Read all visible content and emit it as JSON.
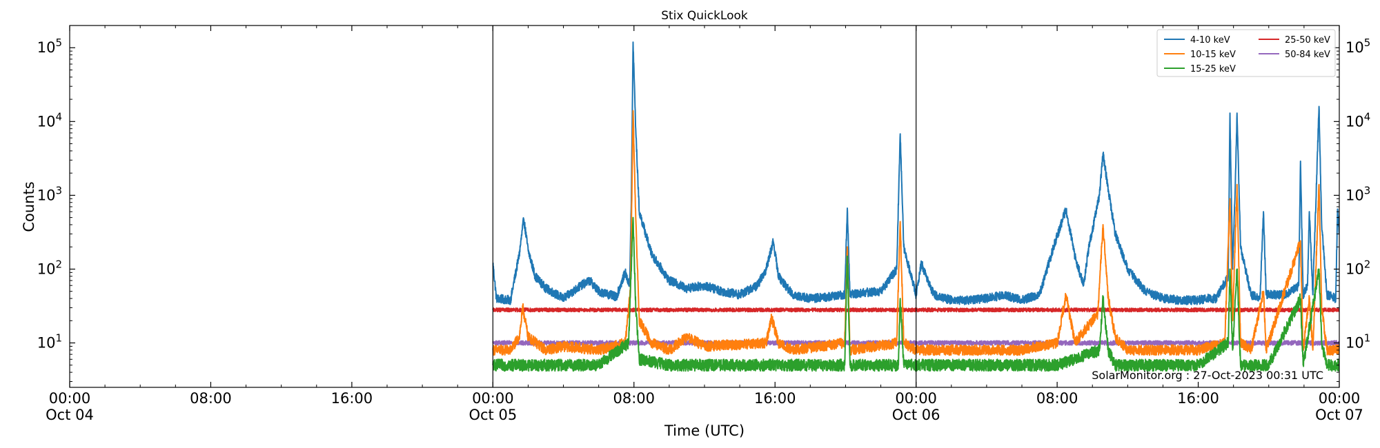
{
  "chart_data": {
    "type": "line",
    "title": "Stix QuickLook",
    "xlabel": "Time (UTC)",
    "ylabel": "Counts",
    "yscale": "log",
    "ylim": [
      2.5,
      200000
    ],
    "xlim_hours": [
      0,
      72
    ],
    "x_ticks": [
      {
        "hour": 0,
        "time": "00:00",
        "date": "Oct 04"
      },
      {
        "hour": 8,
        "time": "08:00",
        "date": ""
      },
      {
        "hour": 16,
        "time": "16:00",
        "date": ""
      },
      {
        "hour": 24,
        "time": "00:00",
        "date": "Oct 05"
      },
      {
        "hour": 32,
        "time": "08:00",
        "date": ""
      },
      {
        "hour": 40,
        "time": "16:00",
        "date": ""
      },
      {
        "hour": 48,
        "time": "00:00",
        "date": "Oct 06"
      },
      {
        "hour": 56,
        "time": "08:00",
        "date": ""
      },
      {
        "hour": 64,
        "time": "16:00",
        "date": ""
      },
      {
        "hour": 72,
        "time": "00:00",
        "date": "Oct 07"
      }
    ],
    "y_ticks": [
      {
        "value": 10,
        "base": "10",
        "exp": "1"
      },
      {
        "value": 100,
        "base": "10",
        "exp": "2"
      },
      {
        "value": 1000,
        "base": "10",
        "exp": "3"
      },
      {
        "value": 10000,
        "base": "10",
        "exp": "4"
      },
      {
        "value": 100000,
        "base": "10",
        "exp": "5"
      }
    ],
    "day_boundaries_hours": [
      24,
      48
    ],
    "data_start_hour": 24,
    "legend_position": "top-right",
    "grid": false,
    "series": [
      {
        "name": "4-10 keV",
        "color": "#1f77b4",
        "baseline": 38,
        "points": [
          [
            24.0,
            120
          ],
          [
            24.2,
            40
          ],
          [
            25.0,
            38
          ],
          [
            25.5,
            160
          ],
          [
            25.75,
            480
          ],
          [
            26.0,
            180
          ],
          [
            26.4,
            80
          ],
          [
            27.0,
            55
          ],
          [
            28.0,
            40
          ],
          [
            29.0,
            60
          ],
          [
            29.5,
            70
          ],
          [
            30.0,
            50
          ],
          [
            31.0,
            42
          ],
          [
            31.5,
            90
          ],
          [
            31.75,
            60
          ],
          [
            31.85,
            800
          ],
          [
            31.95,
            119000
          ],
          [
            32.1,
            8000
          ],
          [
            32.3,
            600
          ],
          [
            33.0,
            160
          ],
          [
            34.0,
            70
          ],
          [
            35.0,
            55
          ],
          [
            36.0,
            60
          ],
          [
            37.0,
            50
          ],
          [
            38.0,
            45
          ],
          [
            39.0,
            60
          ],
          [
            39.5,
            100
          ],
          [
            39.9,
            240
          ],
          [
            40.2,
            80
          ],
          [
            41.0,
            45
          ],
          [
            42.0,
            40
          ],
          [
            43.0,
            42
          ],
          [
            43.95,
            45
          ],
          [
            44.1,
            670
          ],
          [
            44.25,
            45
          ],
          [
            45.0,
            48
          ],
          [
            46.0,
            50
          ],
          [
            46.9,
            100
          ],
          [
            47.1,
            6800
          ],
          [
            47.3,
            200
          ],
          [
            48.0,
            45
          ],
          [
            48.3,
            120
          ],
          [
            49.0,
            45
          ],
          [
            50.0,
            38
          ],
          [
            51.0,
            38
          ],
          [
            52.0,
            40
          ],
          [
            53.0,
            45
          ],
          [
            54.0,
            38
          ],
          [
            55.0,
            45
          ],
          [
            55.8,
            200
          ],
          [
            56.5,
            650
          ],
          [
            57.0,
            150
          ],
          [
            57.5,
            60
          ],
          [
            57.8,
            200
          ],
          [
            58.4,
            1000
          ],
          [
            58.6,
            3700
          ],
          [
            58.9,
            1200
          ],
          [
            59.3,
            300
          ],
          [
            60.0,
            100
          ],
          [
            61.0,
            50
          ],
          [
            62.0,
            40
          ],
          [
            63.0,
            38
          ],
          [
            64.0,
            38
          ],
          [
            64.6,
            40
          ],
          [
            65.0,
            40
          ],
          [
            65.7,
            80
          ],
          [
            65.8,
            13000
          ],
          [
            65.95,
            100
          ],
          [
            66.1,
            1300
          ],
          [
            66.2,
            13000
          ],
          [
            66.4,
            200
          ],
          [
            67.0,
            45
          ],
          [
            67.5,
            40
          ],
          [
            67.7,
            600
          ],
          [
            67.85,
            45
          ],
          [
            68.5,
            45
          ],
          [
            69.0,
            45
          ],
          [
            69.7,
            60
          ],
          [
            69.8,
            2900
          ],
          [
            69.95,
            45
          ],
          [
            70.2,
            60
          ],
          [
            70.3,
            600
          ],
          [
            70.5,
            45
          ],
          [
            70.85,
            16000
          ],
          [
            71.0,
            400
          ],
          [
            71.3,
            45
          ],
          [
            71.8,
            40
          ],
          [
            71.9,
            650
          ],
          [
            72.0,
            300
          ]
        ]
      },
      {
        "name": "10-15 keV",
        "color": "#ff7f0e",
        "baseline": 8,
        "points": [
          [
            24.0,
            8
          ],
          [
            25.0,
            8
          ],
          [
            25.5,
            12
          ],
          [
            25.7,
            30
          ],
          [
            26.0,
            12
          ],
          [
            27.0,
            8
          ],
          [
            28.0,
            9
          ],
          [
            30.0,
            8
          ],
          [
            31.5,
            10
          ],
          [
            31.8,
            50
          ],
          [
            31.95,
            14000
          ],
          [
            32.1,
            500
          ],
          [
            32.3,
            20
          ],
          [
            33.0,
            10
          ],
          [
            34.0,
            8
          ],
          [
            35.0,
            12
          ],
          [
            36.0,
            9
          ],
          [
            39.5,
            10
          ],
          [
            39.8,
            22
          ],
          [
            40.2,
            10
          ],
          [
            41.0,
            8
          ],
          [
            43.95,
            10
          ],
          [
            44.1,
            200
          ],
          [
            44.25,
            8
          ],
          [
            46.9,
            10
          ],
          [
            47.1,
            440
          ],
          [
            47.3,
            10
          ],
          [
            48.0,
            8
          ],
          [
            50.0,
            8
          ],
          [
            52.0,
            8
          ],
          [
            54.0,
            8
          ],
          [
            56.0,
            10
          ],
          [
            56.5,
            45
          ],
          [
            57.0,
            10
          ],
          [
            58.3,
            25
          ],
          [
            58.6,
            400
          ],
          [
            58.9,
            40
          ],
          [
            59.3,
            12
          ],
          [
            60.0,
            8
          ],
          [
            62.0,
            8
          ],
          [
            64.0,
            8
          ],
          [
            65.5,
            10
          ],
          [
            65.8,
            900
          ],
          [
            65.95,
            20
          ],
          [
            66.2,
            1400
          ],
          [
            66.4,
            10
          ],
          [
            67.0,
            8
          ],
          [
            67.7,
            50
          ],
          [
            67.85,
            8
          ],
          [
            69.8,
            240
          ],
          [
            69.95,
            8
          ],
          [
            70.3,
            40
          ],
          [
            70.5,
            8
          ],
          [
            70.85,
            1400
          ],
          [
            71.0,
            30
          ],
          [
            71.3,
            8
          ],
          [
            72.0,
            8
          ]
        ]
      },
      {
        "name": "15-25 keV",
        "color": "#2ca02c",
        "baseline": 5,
        "points": [
          [
            24.0,
            5
          ],
          [
            26.0,
            5
          ],
          [
            28.0,
            5
          ],
          [
            30.0,
            5
          ],
          [
            31.7,
            10
          ],
          [
            31.95,
            500
          ],
          [
            32.1,
            30
          ],
          [
            32.3,
            6
          ],
          [
            34.0,
            5
          ],
          [
            36.0,
            5
          ],
          [
            38.0,
            5
          ],
          [
            40.0,
            5
          ],
          [
            43.95,
            5
          ],
          [
            44.1,
            150
          ],
          [
            44.25,
            5
          ],
          [
            47.0,
            5
          ],
          [
            47.1,
            40
          ],
          [
            47.3,
            5
          ],
          [
            50.0,
            5
          ],
          [
            52.0,
            5
          ],
          [
            54.0,
            5
          ],
          [
            56.0,
            5
          ],
          [
            58.4,
            8
          ],
          [
            58.6,
            40
          ],
          [
            58.9,
            8
          ],
          [
            59.3,
            5
          ],
          [
            62.0,
            5
          ],
          [
            64.0,
            5
          ],
          [
            65.7,
            10
          ],
          [
            65.8,
            100
          ],
          [
            65.95,
            8
          ],
          [
            66.2,
            100
          ],
          [
            66.4,
            5
          ],
          [
            68.0,
            5
          ],
          [
            69.8,
            40
          ],
          [
            69.95,
            5
          ],
          [
            70.85,
            100
          ],
          [
            71.0,
            10
          ],
          [
            71.3,
            5
          ],
          [
            72.0,
            5
          ]
        ]
      },
      {
        "name": "25-50 keV",
        "color": "#d62728",
        "baseline": 28,
        "points": [
          [
            24.0,
            28
          ],
          [
            72.0,
            28
          ]
        ]
      },
      {
        "name": "50-84 keV",
        "color": "#9467bd",
        "baseline": 10,
        "points": [
          [
            24.0,
            10
          ],
          [
            72.0,
            10
          ]
        ]
      }
    ],
    "annotation": "SolarMonitor.org : 27-Oct-2023 00:31 UTC"
  }
}
